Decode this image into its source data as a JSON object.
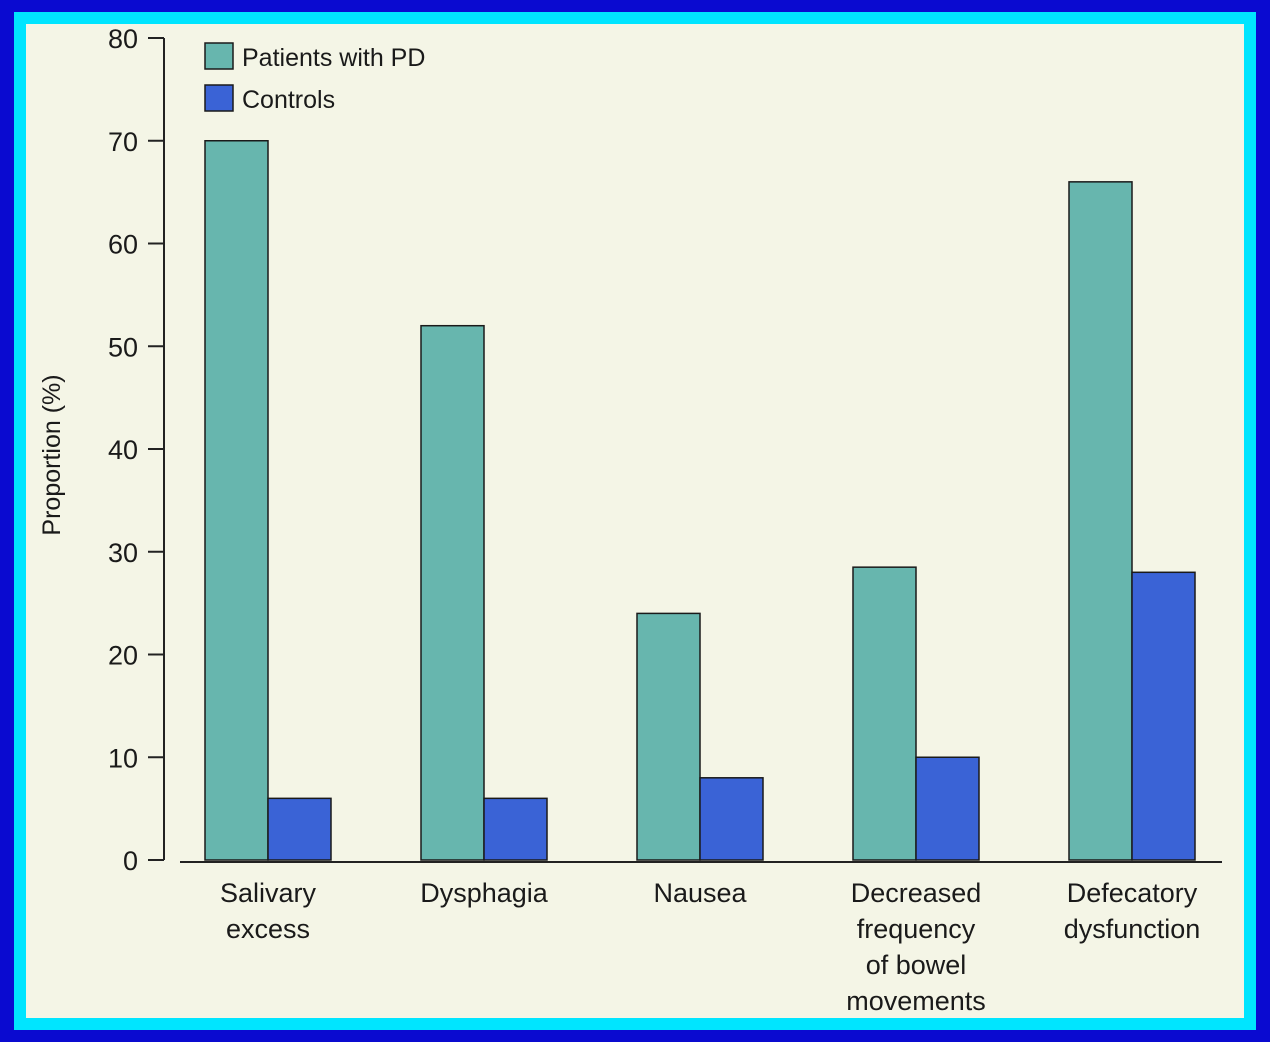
{
  "colors": {
    "outer_frame": "#0a0ad0",
    "inner_frame": "#00e5ff",
    "background": "#f4f5e6",
    "patients": "#67b6ae",
    "controls": "#3a63d6"
  },
  "chart_data": {
    "type": "bar",
    "title": "",
    "xlabel": "",
    "ylabel": "Proportion (%)",
    "ylim": [
      0,
      80
    ],
    "yticks": [
      "0",
      "10",
      "20",
      "30",
      "40",
      "50",
      "60",
      "70",
      "80"
    ],
    "grid": false,
    "legend_position": "top-left",
    "categories": [
      [
        "Salivary",
        "excess"
      ],
      [
        "Dysphagia"
      ],
      [
        "Nausea"
      ],
      [
        "Decreased",
        "frequency",
        "of bowel",
        "movements"
      ],
      [
        "Defecatory",
        "dysfunction"
      ]
    ],
    "series": [
      {
        "name": "Patients with PD",
        "color": "#67b6ae",
        "values": [
          70,
          52,
          24,
          28.5,
          66
        ]
      },
      {
        "name": "Controls",
        "color": "#3a63d6",
        "values": [
          6,
          6,
          8,
          10,
          28
        ]
      }
    ]
  }
}
